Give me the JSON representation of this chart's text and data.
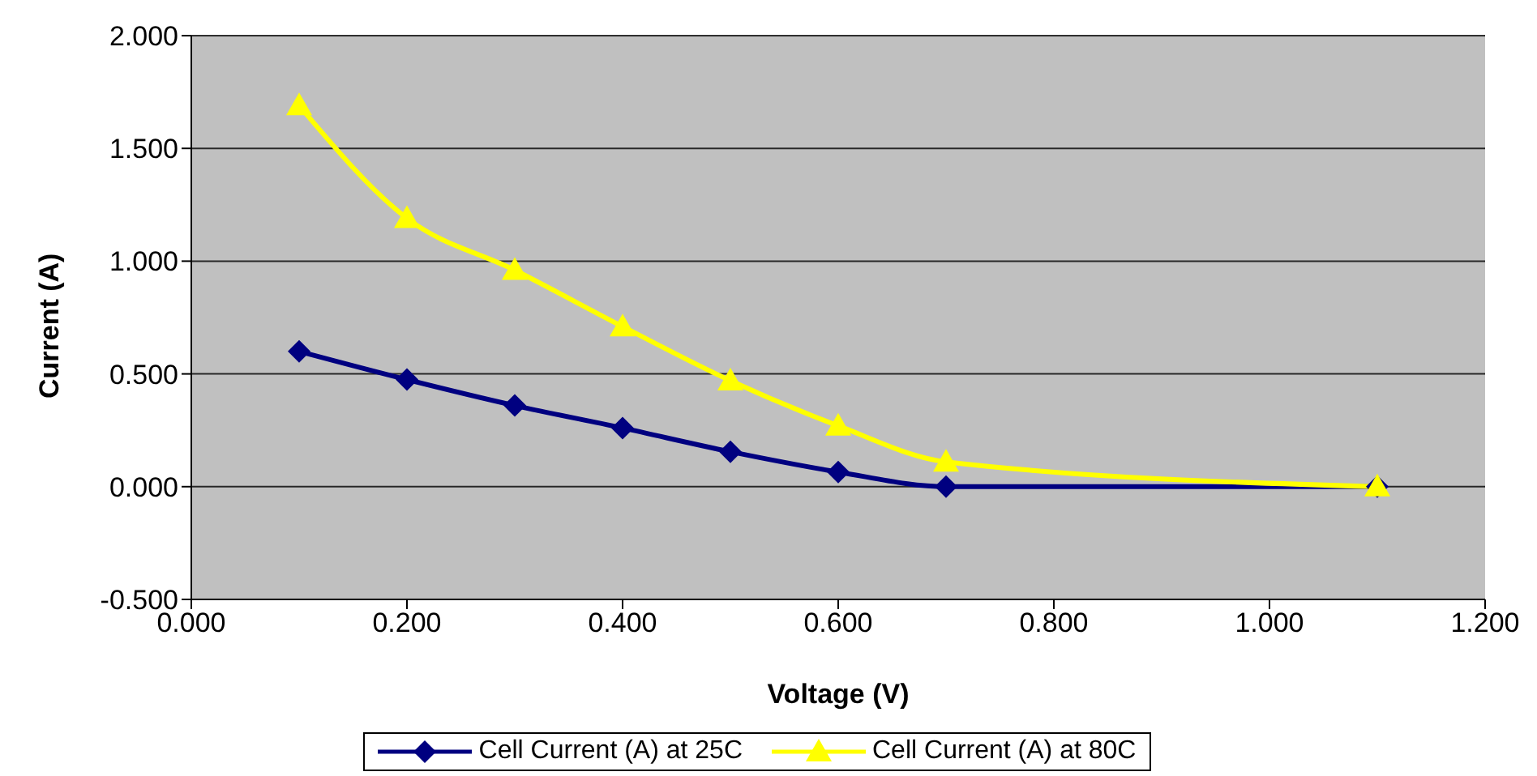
{
  "chart_data": {
    "type": "line",
    "xlabel": "Voltage (V)",
    "ylabel": "Current (A)",
    "x": [
      0.1,
      0.2,
      0.3,
      0.4,
      0.5,
      0.6,
      0.7,
      1.1
    ],
    "series": [
      {
        "name": "Cell Current (A) at 25C",
        "color": "#000080",
        "marker": "diamond",
        "values": [
          0.6,
          0.475,
          0.36,
          0.26,
          0.155,
          0.065,
          0,
          0
        ]
      },
      {
        "name": "Cell Current (A) at 80C",
        "color": "#ffff00",
        "marker": "triangle",
        "values": [
          1.69,
          1.19,
          0.96,
          0.71,
          0.47,
          0.27,
          0.11,
          0
        ]
      }
    ],
    "xlim": [
      0,
      1.2
    ],
    "xticks": [
      {
        "value": 0,
        "label": "0.000"
      },
      {
        "value": 0.2,
        "label": "0.200"
      },
      {
        "value": 0.4,
        "label": "0.400"
      },
      {
        "value": 0.6,
        "label": "0.600"
      },
      {
        "value": 0.8,
        "label": "0.800"
      },
      {
        "value": 1,
        "label": "1.000"
      },
      {
        "value": 1.2,
        "label": "1.200"
      }
    ],
    "ylim": [
      -0.5,
      2
    ],
    "yticks": [
      {
        "value": -0.5,
        "label": "-0.500"
      },
      {
        "value": 0,
        "label": "0.000"
      },
      {
        "value": 0.5,
        "label": "0.500"
      },
      {
        "value": 1,
        "label": "1.000"
      },
      {
        "value": 1.5,
        "label": "1.500"
      },
      {
        "value": 2,
        "label": "2.000"
      }
    ],
    "grid": "y",
    "legend": "bottom",
    "line_style": "solid"
  }
}
